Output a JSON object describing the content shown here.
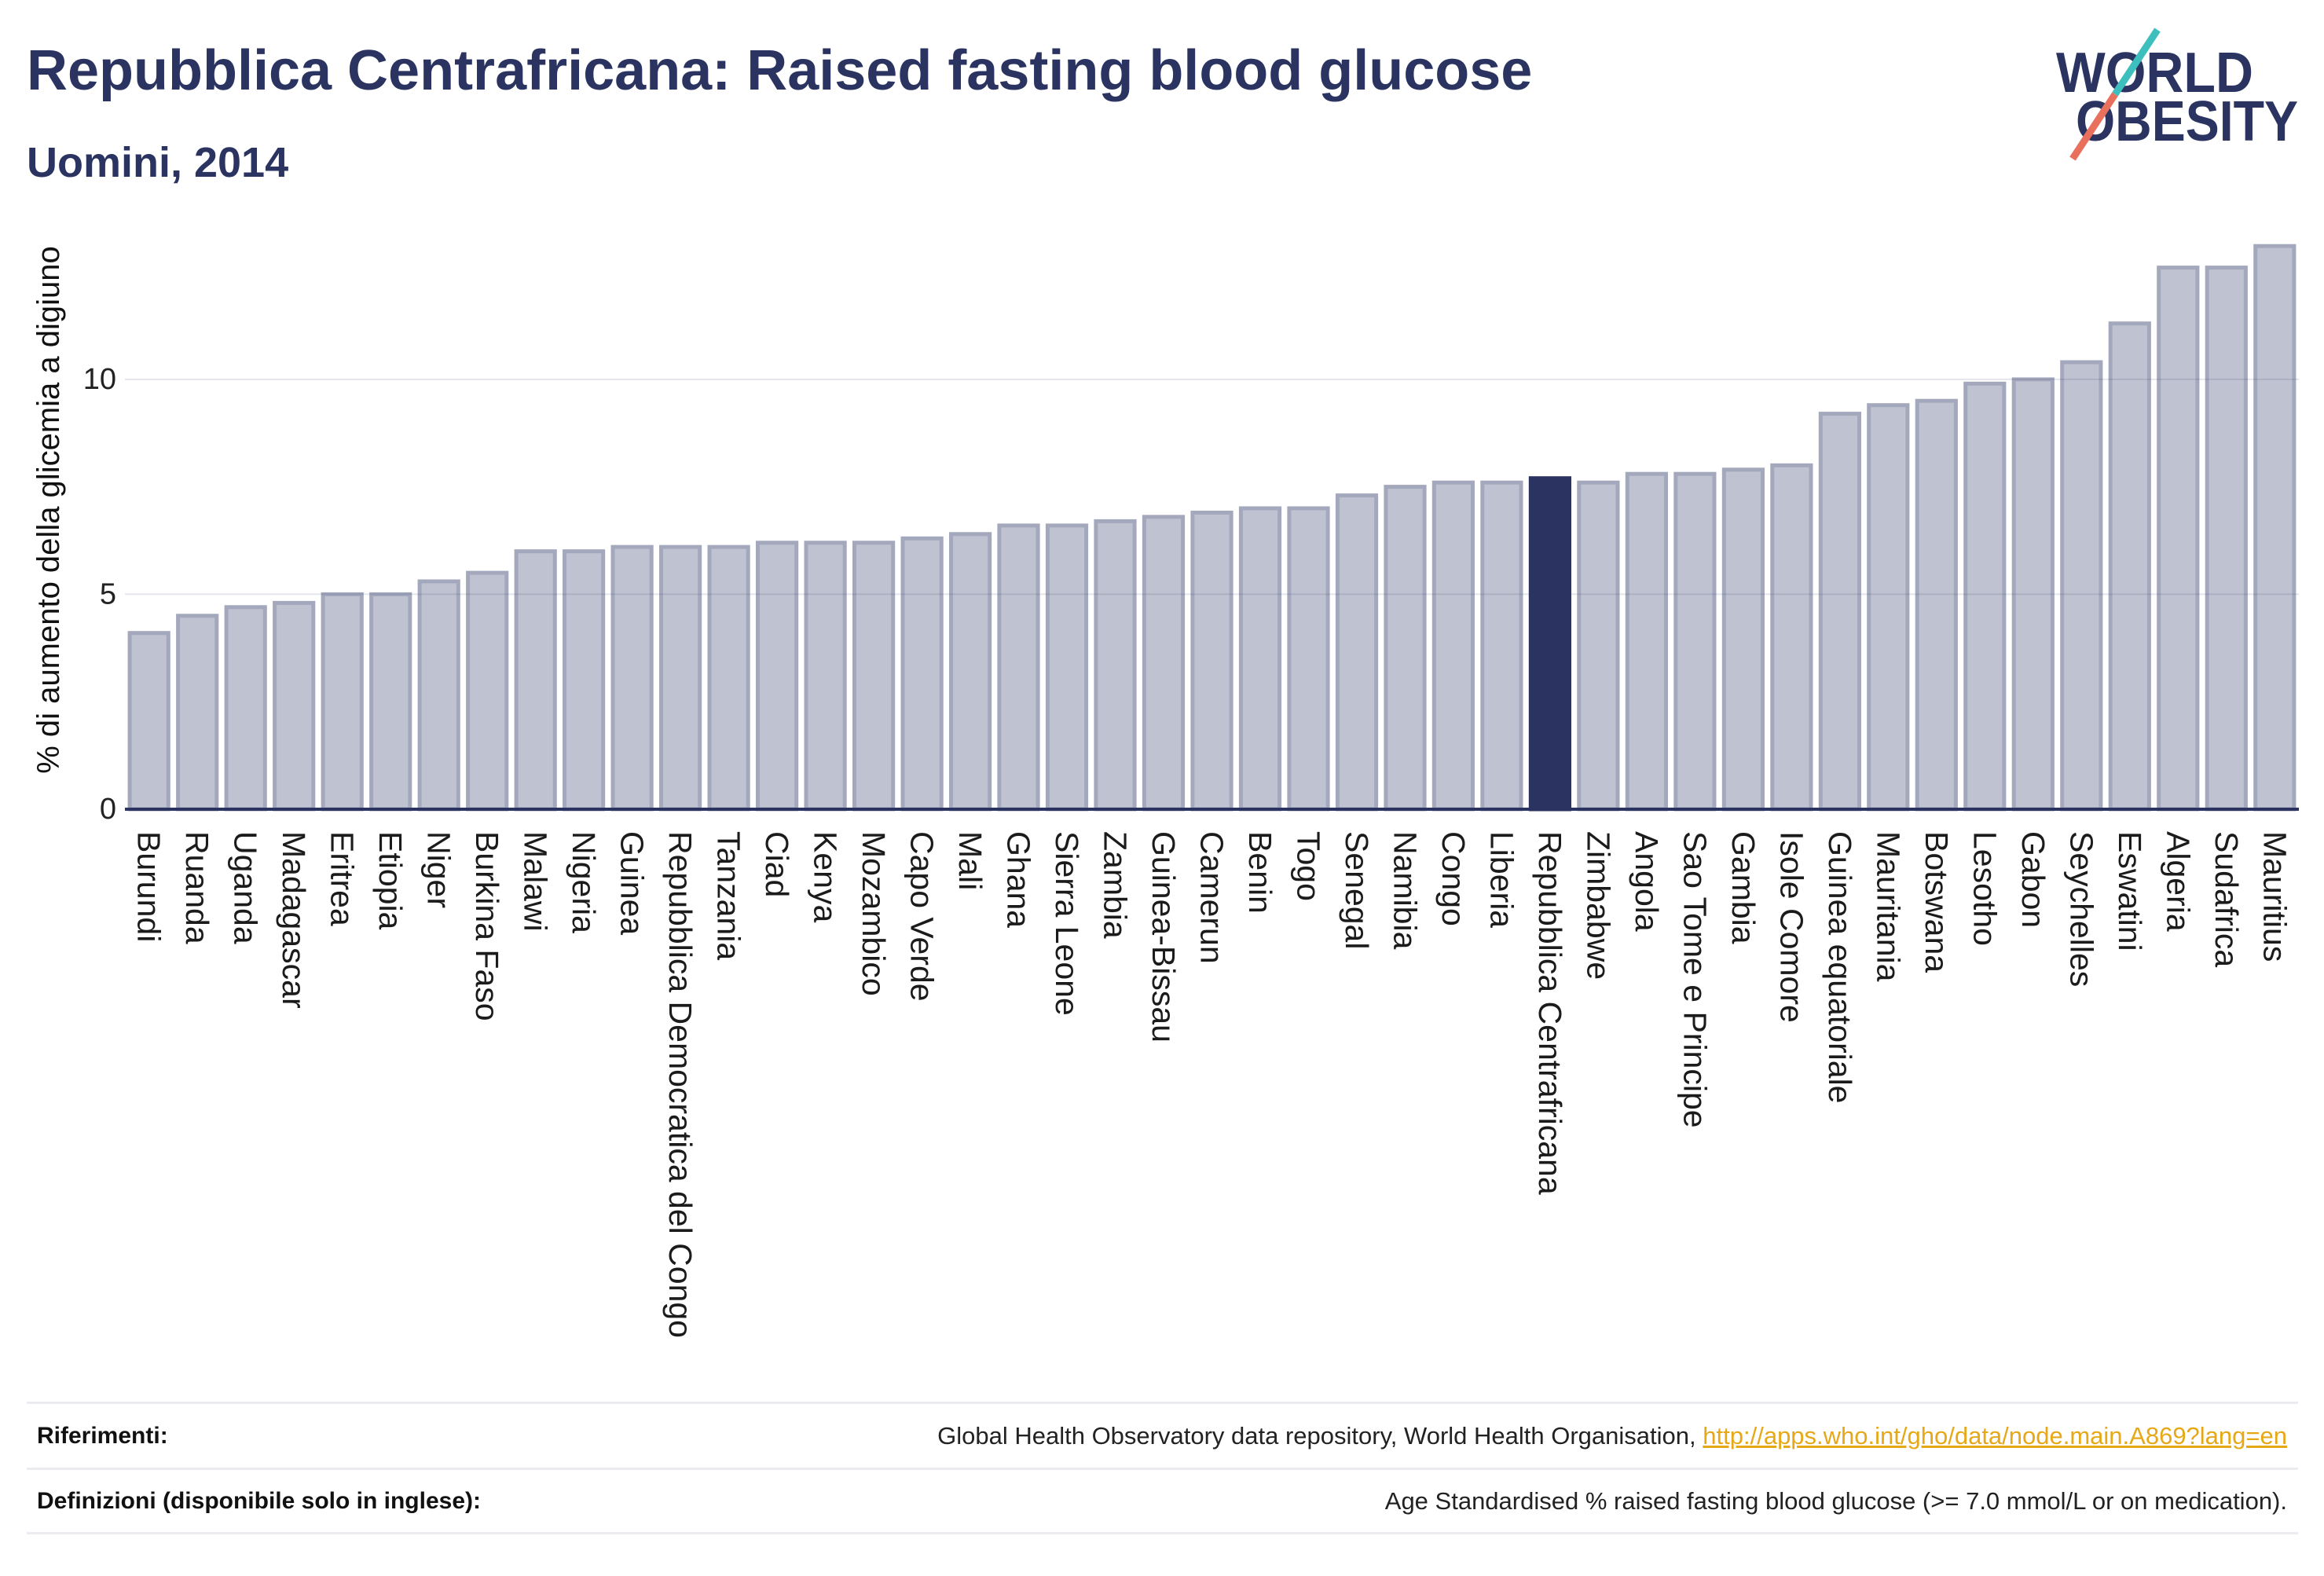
{
  "colors": {
    "title": "#2b3461",
    "bar": "#bfc2d0",
    "bar_outline": "#a3a8bc",
    "highlight": "#2b3461",
    "axis": "#2b3461",
    "link": "#e6a817",
    "logo_text": "#2b3461",
    "logo_slash_top": "#3cbfbd",
    "logo_slash_bottom": "#e8705c"
  },
  "logo": {
    "line1": "WORLD",
    "line2": "OBESITY"
  },
  "chart_data": {
    "type": "bar",
    "title": "Repubblica Centrafricana: Raised fasting blood glucose",
    "subtitle": "Uomini, 2014",
    "ylabel": "% di aumento della glicemia a digiuno",
    "ylim": [
      0,
      14
    ],
    "yticks": [
      0,
      5,
      10
    ],
    "grid": true,
    "highlight_index": 29,
    "categories": [
      "Burundi",
      "Ruanda",
      "Uganda",
      "Madagascar",
      "Eritrea",
      "Etiopia",
      "Niger",
      "Burkina Faso",
      "Malawi",
      "Nigeria",
      "Guinea",
      "Repubblica Democratica del Congo",
      "Tanzania",
      "Ciad",
      "Kenya",
      "Mozambico",
      "Capo Verde",
      "Mali",
      "Ghana",
      "Sierra Leone",
      "Zambia",
      "Guinea-Bissau",
      "Camerun",
      "Benin",
      "Togo",
      "Senegal",
      "Namibia",
      "Congo",
      "Liberia",
      "Repubblica Centrafricana",
      "Zimbabwe",
      "Angola",
      "Sao Tome e Principe",
      "Gambia",
      "Isole Comore",
      "Guinea equatoriale",
      "Mauritania",
      "Botswana",
      "Lesotho",
      "Gabon",
      "Seychelles",
      "Eswatini",
      "Algeria",
      "Sudafrica",
      "Mauritius"
    ],
    "values": [
      4.1,
      4.5,
      4.7,
      4.8,
      5.0,
      5.0,
      5.3,
      5.5,
      6.0,
      6.0,
      6.1,
      6.1,
      6.1,
      6.2,
      6.2,
      6.2,
      6.3,
      6.4,
      6.6,
      6.6,
      6.7,
      6.8,
      6.9,
      7.0,
      7.0,
      7.3,
      7.5,
      7.6,
      7.6,
      7.7,
      7.6,
      7.8,
      7.8,
      7.9,
      8.0,
      9.2,
      9.4,
      9.5,
      9.9,
      10.0,
      10.4,
      11.3,
      12.6,
      12.6,
      13.1
    ]
  },
  "footer": {
    "references_label": "Riferimenti:",
    "references_text": "Global Health Observatory data repository, World Health Organisation,",
    "references_link": "http://apps.who.int/gho/data/node.main.A869?lang=en",
    "definitions_label": "Definizioni (disponibile solo in inglese):",
    "definitions_text": "Age Standardised % raised fasting blood glucose (>= 7.0 mmol/L or on medication)."
  }
}
